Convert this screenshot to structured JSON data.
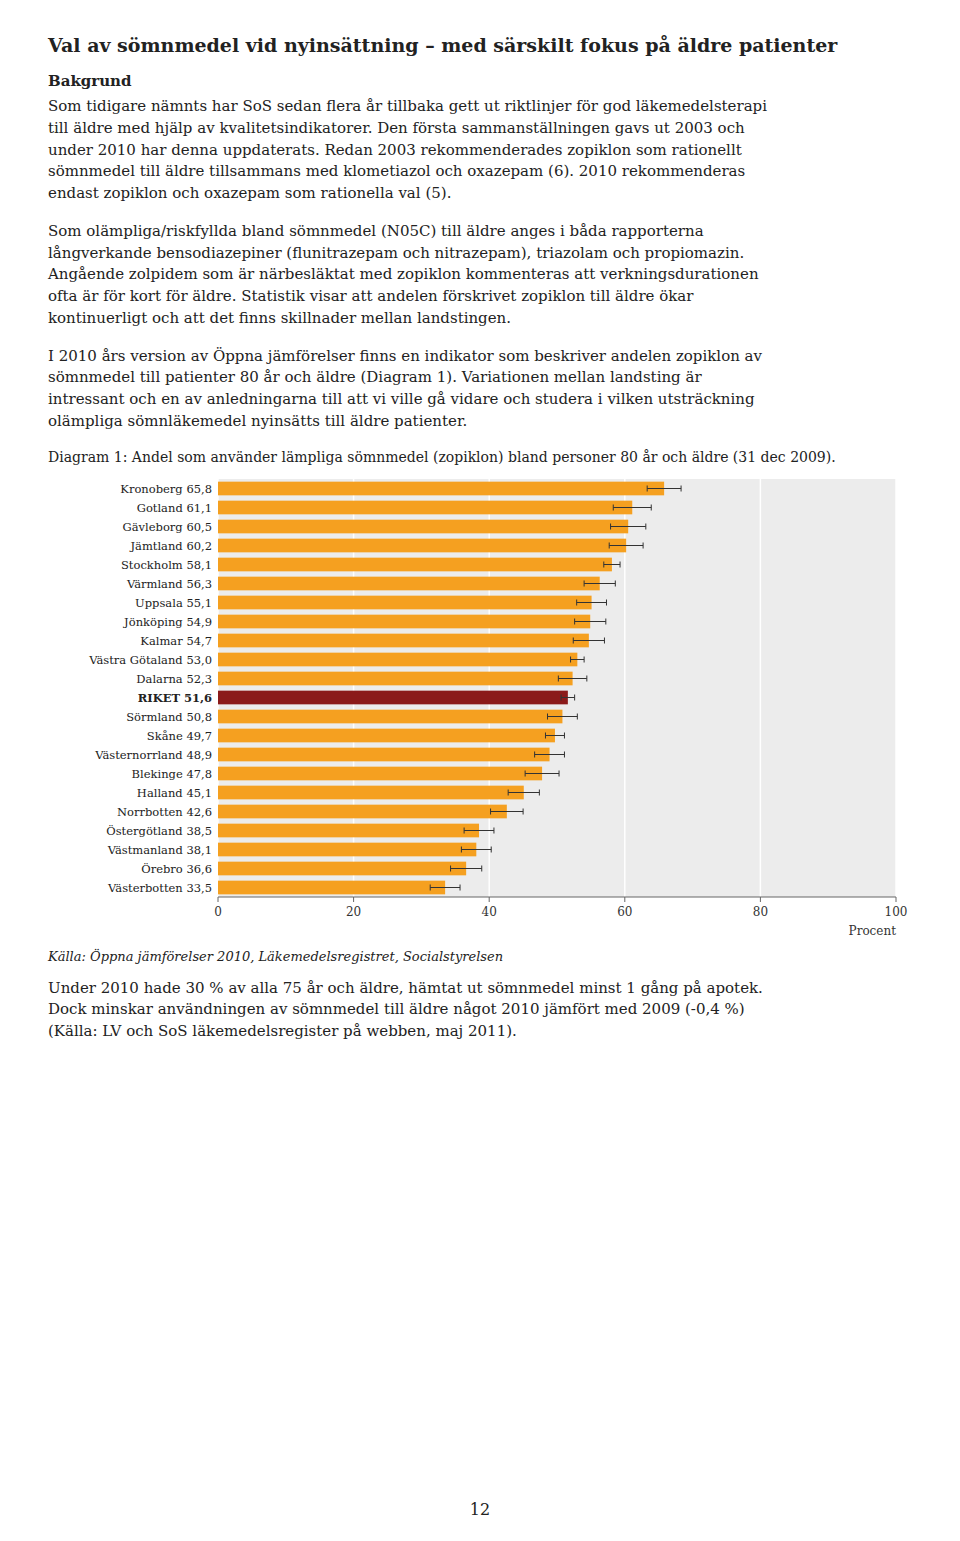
{
  "title": "Val av sömnmedel vid nyinsättning – med särskilt fokus på äldre patienter",
  "heading": "Bakgrund",
  "paragraphs": [
    "Som tidigare nämnts har SoS sedan flera år tillbaka gett ut riktlinjer för god läkemedelsterapi\ntill äldre med hjälp av kvalitetsindikatorer. Den första sammanställningen gavs ut 2003 och\nunder 2010 har denna uppdaterats. Redan 2003 rekommenderades zopiklon som rationellt\nsömnmedel till äldre tillsammans med klometiazol och oxazepam (6). 2010 rekommenderas\nendast zopiklon och oxazepam som rationella val (5).",
    "Som olämpliga/riskfyllda bland sömnmedel (N05C) till äldre anges i båda rapporterna\nlångverkande bensodiazepiner (flunitrazepam och nitrazepam), triazolam och propiomazin.\nAngående zolpidem som är närbesläktat med zopiklon kommenteras att verkningsdurationen\nofta är för kort för äldre. Statistik visar att andelen förskrivet zopiklon till äldre ökar\nkontinuerligt och att det finns skillnader mellan landstingen.",
    "I 2010 års version av Öppna jämförelser finns en indikator som beskriver andelen zopiklon av\nsömnmedel till patienter 80 år och äldre (Diagram 1). Variationen mellan landsting är\nintressant och en av anledningarna till att vi ville gå vidare och studera i vilken utsträckning\nolämpliga sömnläkemedel nyinsätts till äldre patienter.",
    "Under 2010 hade 30 % av alla 75 år och äldre, hämtat ut sömnmedel minst 1 gång på apotek.\nDock minskar användningen av sömnmedel till äldre något 2010 jämfört med 2009 (-0,4 %)\n(Källa: LV och SoS läkemedelsregister på webben, maj 2011)."
  ],
  "source": "Källa: Öppna jämförelser 2010, Läkemedelsregistret, Socialstyrelsen",
  "page_number": "12",
  "chart_data": {
    "type": "bar",
    "orientation": "horizontal",
    "title": "Diagram 1: Andel som använder lämpliga sömnmedel (zopiklon) bland personer 80 år och äldre (31 dec 2009).",
    "categories": [
      "Kronoberg 65,8",
      "Gotland 61,1",
      "Gävleborg 60,5",
      "Jämtland 60,2",
      "Stockholm 58,1",
      "Värmland 56,3",
      "Uppsala 55,1",
      "Jönköping 54,9",
      "Kalmar 54,7",
      "Västra Götaland 53,0",
      "Dalarna 52,3",
      "RIKET 51,6",
      "Sörmland 50,8",
      "Skåne 49,7",
      "Västernorrland 48,9",
      "Blekinge 47,8",
      "Halland 45,1",
      "Norrbotten 42,6",
      "Östergötland 38,5",
      "Västmanland 38,1",
      "Örebro 36,6",
      "Västerbotten 33,5"
    ],
    "values": [
      65.8,
      61.1,
      60.5,
      60.2,
      58.1,
      56.3,
      55.1,
      54.9,
      54.7,
      53.0,
      52.3,
      51.6,
      50.8,
      49.7,
      48.9,
      47.8,
      45.1,
      42.6,
      38.5,
      38.1,
      36.6,
      33.5
    ],
    "error_bars": [
      2.5,
      2.8,
      2.6,
      2.5,
      1.2,
      2.3,
      2.2,
      2.3,
      2.3,
      1.0,
      2.1,
      1.0,
      2.2,
      1.4,
      2.2,
      2.5,
      2.3,
      2.4,
      2.2,
      2.2,
      2.3,
      2.2
    ],
    "colors": [
      "#F5A020",
      "#F5A020",
      "#F5A020",
      "#F5A020",
      "#F5A020",
      "#F5A020",
      "#F5A020",
      "#F5A020",
      "#F5A020",
      "#F5A020",
      "#F5A020",
      "#8B1A1A",
      "#F5A020",
      "#F5A020",
      "#F5A020",
      "#F5A020",
      "#F5A020",
      "#F5A020",
      "#F5A020",
      "#F5A020",
      "#F5A020",
      "#F5A020"
    ],
    "xlabel": "Procent",
    "xlim": [
      0,
      100
    ],
    "xticks": [
      0,
      20,
      40,
      60,
      80,
      100
    ],
    "grid": true
  }
}
